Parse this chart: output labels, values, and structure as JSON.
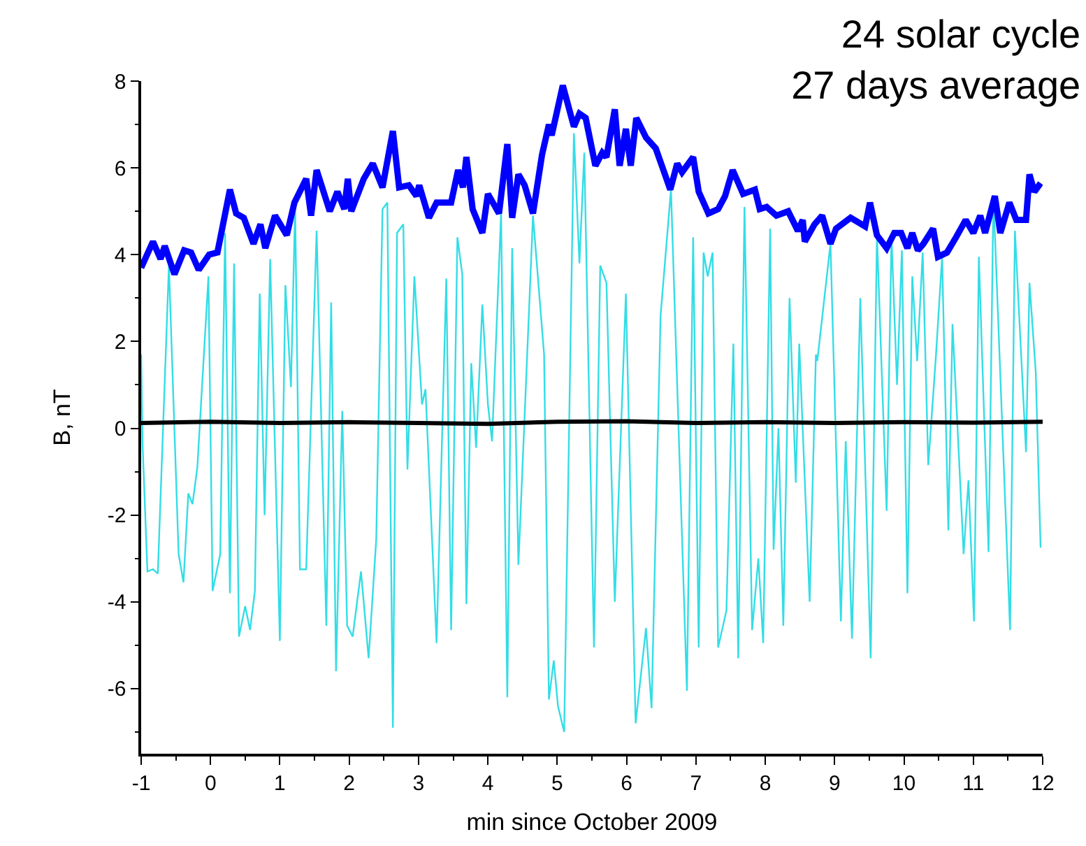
{
  "chart_data": {
    "type": "line",
    "title": "24 solar cycle\n27 days average",
    "xlabel": "min since October 2009",
    "ylabel": "B, nT",
    "xlim": [
      -1,
      12
    ],
    "xticks": [
      -1,
      0,
      1,
      2,
      3,
      4,
      5,
      6,
      7,
      8,
      9,
      10,
      11,
      12
    ],
    "ylim": [
      -7.5,
      8
    ],
    "yticks": [
      -6,
      -4,
      -2,
      0,
      2,
      4,
      6,
      8
    ],
    "marker": "none",
    "line_style": "solid",
    "series": [
      {
        "color": "#33dde6",
        "x": [
          -1,
          -0.98,
          -0.91,
          -0.83,
          -0.76,
          -0.6,
          -0.46,
          -0.39,
          -0.32,
          -0.26,
          -0.19,
          -0.03,
          0.03,
          0.14,
          0.21,
          0.28,
          0.34,
          0.41,
          0.5,
          0.57,
          0.64,
          0.71,
          0.78,
          0.86,
          1.0,
          1.08,
          1.16,
          1.22,
          1.29,
          1.38,
          1.53,
          1.67,
          1.74,
          1.81,
          1.9,
          1.97,
          2.05,
          2.17,
          2.28,
          2.39,
          2.48,
          2.55,
          2.63,
          2.69,
          2.78,
          2.84,
          2.94,
          3.05,
          3.1,
          3.26,
          3.4,
          3.47,
          3.56,
          3.63,
          3.69,
          3.76,
          3.83,
          3.92,
          4.0,
          4.06,
          4.19,
          4.28,
          4.35,
          4.44,
          4.65,
          4.81,
          4.88,
          4.95,
          5.01,
          5.1,
          5.24,
          5.32,
          5.39,
          5.53,
          5.62,
          5.71,
          5.83,
          5.99,
          6.13,
          6.28,
          6.36,
          6.49,
          6.64,
          6.87,
          6.96,
          7.04,
          7.11,
          7.17,
          7.24,
          7.32,
          7.44,
          7.54,
          7.61,
          7.7,
          7.81,
          7.9,
          7.97,
          8.07,
          8.12,
          8.19,
          8.26,
          8.35,
          8.44,
          8.49,
          8.64,
          8.73,
          8.75,
          8.94,
          9.09,
          9.16,
          9.25,
          9.37,
          9.52,
          9.61,
          9.75,
          9.82,
          9.9,
          9.97,
          10.05,
          10.12,
          10.19,
          10.27,
          10.35,
          10.46,
          10.55,
          10.64,
          10.7,
          10.86,
          10.93,
          11.01,
          11.08,
          11.22,
          11.29,
          11.53,
          11.6,
          11.76,
          11.81,
          11.9,
          11.97
        ],
        "values": [
          1.7,
          -0.35,
          -3.3,
          -3.25,
          -3.35,
          3.75,
          -2.9,
          -3.55,
          -1.5,
          -1.75,
          -0.9,
          3.5,
          -3.75,
          -2.9,
          4.5,
          -3.8,
          3.8,
          -4.8,
          -4.1,
          -4.65,
          -3.75,
          3.1,
          -2.0,
          3.9,
          -4.9,
          3.3,
          0.95,
          5.1,
          -3.25,
          -3.25,
          4.55,
          -4.55,
          2.9,
          -5.6,
          0.4,
          -4.55,
          -4.8,
          -3.3,
          -5.3,
          -2.55,
          5.05,
          5.2,
          -6.9,
          4.5,
          4.7,
          -0.95,
          3.5,
          0.55,
          0.9,
          -4.95,
          3.45,
          -4.65,
          4.4,
          3.55,
          -4.05,
          1.5,
          -0.45,
          2.85,
          0.55,
          -0.3,
          4.95,
          -6.2,
          4.15,
          -3.15,
          4.9,
          1.7,
          -6.25,
          -5.35,
          -6.4,
          -7.0,
          6.8,
          3.8,
          6.35,
          -5.05,
          3.75,
          3.35,
          -4.0,
          3.1,
          -6.8,
          -4.6,
          -6.45,
          2.6,
          5.5,
          -6.05,
          4.4,
          -5.05,
          4.05,
          3.5,
          4.05,
          -5.05,
          -4.2,
          1.95,
          -5.3,
          5.1,
          -4.65,
          -3.0,
          -4.95,
          4.6,
          -2.8,
          0.0,
          -4.55,
          3.0,
          -1.25,
          1.95,
          -4.0,
          1.7,
          1.55,
          4.25,
          -4.45,
          -0.3,
          -4.85,
          3.0,
          -5.3,
          4.45,
          -1.9,
          4.4,
          1.0,
          4.1,
          -3.8,
          3.5,
          1.55,
          4.05,
          -0.85,
          1.65,
          3.95,
          -2.35,
          2.4,
          -2.9,
          -1.2,
          -4.45,
          3.95,
          -2.85,
          5.35,
          -4.65,
          4.55,
          -0.55,
          3.35,
          1.3,
          -2.75
        ]
      },
      {
        "color": "#000000",
        "x": [
          -1,
          0,
          1,
          2,
          3,
          4,
          5,
          6,
          7,
          8,
          9,
          10,
          11,
          12
        ],
        "values": [
          0.12,
          0.15,
          0.12,
          0.14,
          0.12,
          0.1,
          0.15,
          0.16,
          0.12,
          0.14,
          0.12,
          0.14,
          0.13,
          0.15
        ]
      },
      {
        "color": "#0000ff",
        "x": [
          -1,
          -0.83,
          -0.72,
          -0.66,
          -0.52,
          -0.38,
          -0.28,
          -0.17,
          -0.02,
          0.1,
          0.28,
          0.37,
          0.48,
          0.62,
          0.72,
          0.79,
          0.93,
          1.1,
          1.21,
          1.38,
          1.45,
          1.53,
          1.72,
          1.83,
          1.93,
          1.98,
          2.03,
          2.21,
          2.34,
          2.48,
          2.63,
          2.72,
          2.86,
          2.97,
          3.01,
          3.15,
          3.26,
          3.47,
          3.57,
          3.64,
          3.69,
          3.78,
          3.92,
          4.0,
          4.16,
          4.28,
          4.35,
          4.44,
          4.53,
          4.65,
          4.78,
          4.88,
          4.92,
          5.08,
          5.24,
          5.32,
          5.41,
          5.55,
          5.65,
          5.71,
          5.83,
          5.9,
          5.99,
          6.06,
          6.14,
          6.28,
          6.42,
          6.63,
          6.73,
          6.8,
          6.96,
          7.04,
          7.18,
          7.32,
          7.42,
          7.53,
          7.68,
          7.85,
          7.92,
          8.02,
          8.16,
          8.33,
          8.47,
          8.54,
          8.57,
          8.71,
          8.82,
          8.94,
          9.02,
          9.23,
          9.44,
          9.51,
          9.61,
          9.75,
          9.86,
          9.96,
          10.05,
          10.12,
          10.2,
          10.28,
          10.42,
          10.49,
          10.62,
          10.75,
          10.89,
          11.0,
          11.1,
          11.17,
          11.31,
          11.39,
          11.52,
          11.62,
          11.76,
          11.81,
          11.88,
          11.97
        ],
        "values": [
          3.7,
          4.3,
          3.9,
          4.2,
          3.55,
          4.1,
          4.05,
          3.65,
          4.0,
          4.05,
          5.5,
          4.95,
          4.85,
          4.25,
          4.7,
          4.15,
          4.9,
          4.45,
          5.2,
          5.75,
          4.9,
          5.95,
          5.0,
          5.45,
          5.05,
          5.75,
          5.0,
          5.75,
          6.1,
          5.55,
          6.85,
          5.55,
          5.6,
          5.35,
          5.6,
          4.85,
          5.2,
          5.2,
          5.95,
          5.55,
          6.25,
          5.05,
          4.5,
          5.4,
          4.95,
          6.55,
          4.85,
          5.85,
          5.6,
          4.95,
          6.3,
          7.0,
          6.75,
          7.9,
          6.95,
          7.25,
          7.15,
          6.05,
          6.35,
          6.25,
          7.35,
          6.05,
          6.9,
          6.05,
          7.15,
          6.7,
          6.45,
          5.5,
          6.1,
          5.9,
          6.25,
          5.45,
          4.95,
          5.05,
          5.35,
          5.95,
          5.4,
          5.5,
          5.05,
          5.1,
          4.9,
          5.0,
          4.55,
          4.8,
          4.3,
          4.7,
          4.9,
          4.25,
          4.6,
          4.85,
          4.65,
          5.2,
          4.45,
          4.15,
          4.5,
          4.5,
          4.15,
          4.5,
          4.1,
          4.25,
          4.6,
          3.95,
          4.05,
          4.4,
          4.8,
          4.5,
          4.9,
          4.5,
          5.35,
          4.5,
          5.2,
          4.8,
          4.8,
          5.85,
          5.45,
          5.65
        ]
      }
    ]
  }
}
